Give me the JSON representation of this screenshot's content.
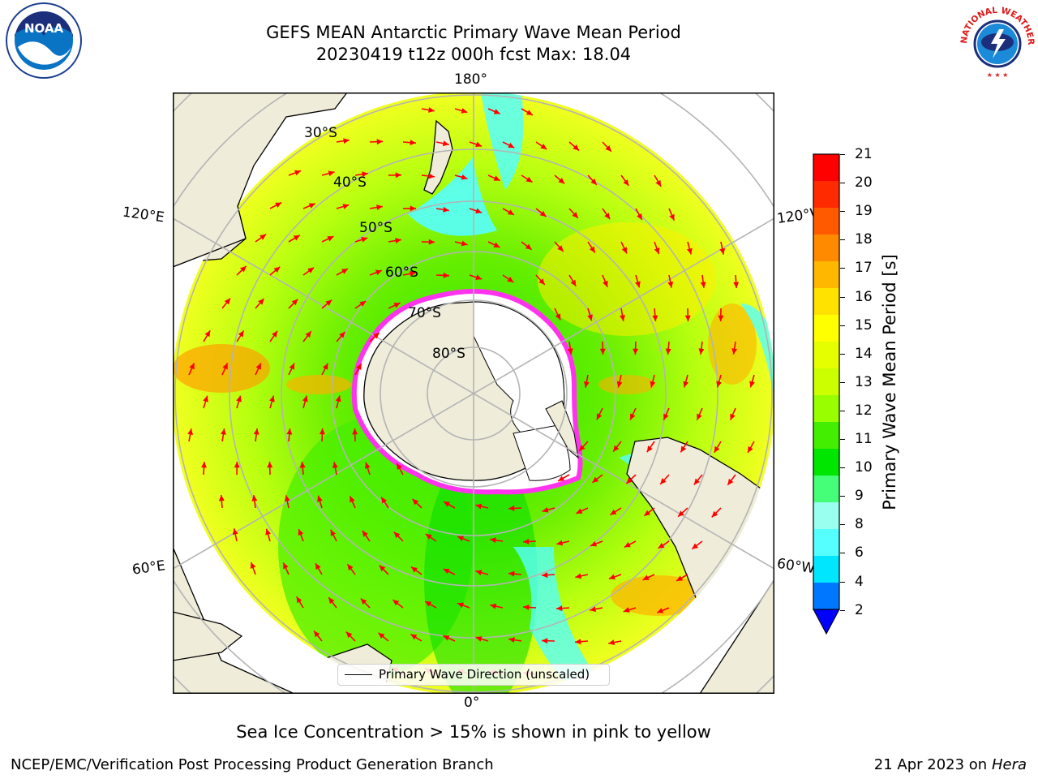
{
  "title": {
    "line1": "GEFS MEAN Antarctic Primary Wave Mean Period",
    "line2": "20230419 t12z 000h fcst   Max: 18.04"
  },
  "map": {
    "projection": "south-polar-stereographic",
    "longitude_labels": {
      "top": "180°",
      "bottom": "0°",
      "upper_left": "120°E",
      "lower_left": "60°E",
      "upper_right": "120°W",
      "lower_right": "60°W"
    },
    "latitude_labels": [
      "30°S",
      "40°S",
      "50°S",
      "60°S",
      "70°S",
      "80°S"
    ],
    "legend": "Primary Wave Direction (unscaled)",
    "colors": {
      "land": "#efecd9",
      "sea_ice": "#ffffff",
      "sea_ice_edge": "#ff33ee",
      "direction_arrows": "#ff0000",
      "graticule": "#b4b4b4"
    }
  },
  "colorbar": {
    "label": "Primary Wave Mean Period [s]",
    "ticks": [
      "21",
      "20",
      "19",
      "18",
      "17",
      "16",
      "15",
      "14",
      "13",
      "12",
      "11",
      "10",
      "9",
      "8",
      "6",
      "4",
      "2"
    ],
    "colors": [
      "#ff0000",
      "#ff2a00",
      "#ff5a00",
      "#ff8a00",
      "#ffb700",
      "#ffe200",
      "#ffff00",
      "#e6ff00",
      "#ccff00",
      "#99ff00",
      "#44ee00",
      "#00e600",
      "#44ff77",
      "#99ffee",
      "#55ffff",
      "#00e6ff",
      "#0077ff"
    ],
    "extend_color": "#0000ff"
  },
  "footnote": "Sea Ice Concentration > 15% is shown in pink to yellow",
  "footer": {
    "left": "NCEP/EMC/Verification Post Processing Product Generation Branch",
    "right_prefix": "21 Apr 2023 on ",
    "right_machine": "Hera"
  },
  "logos": {
    "noaa_text": "NOAA",
    "nws_text": "NATIONAL WEATHER SERVICE"
  }
}
